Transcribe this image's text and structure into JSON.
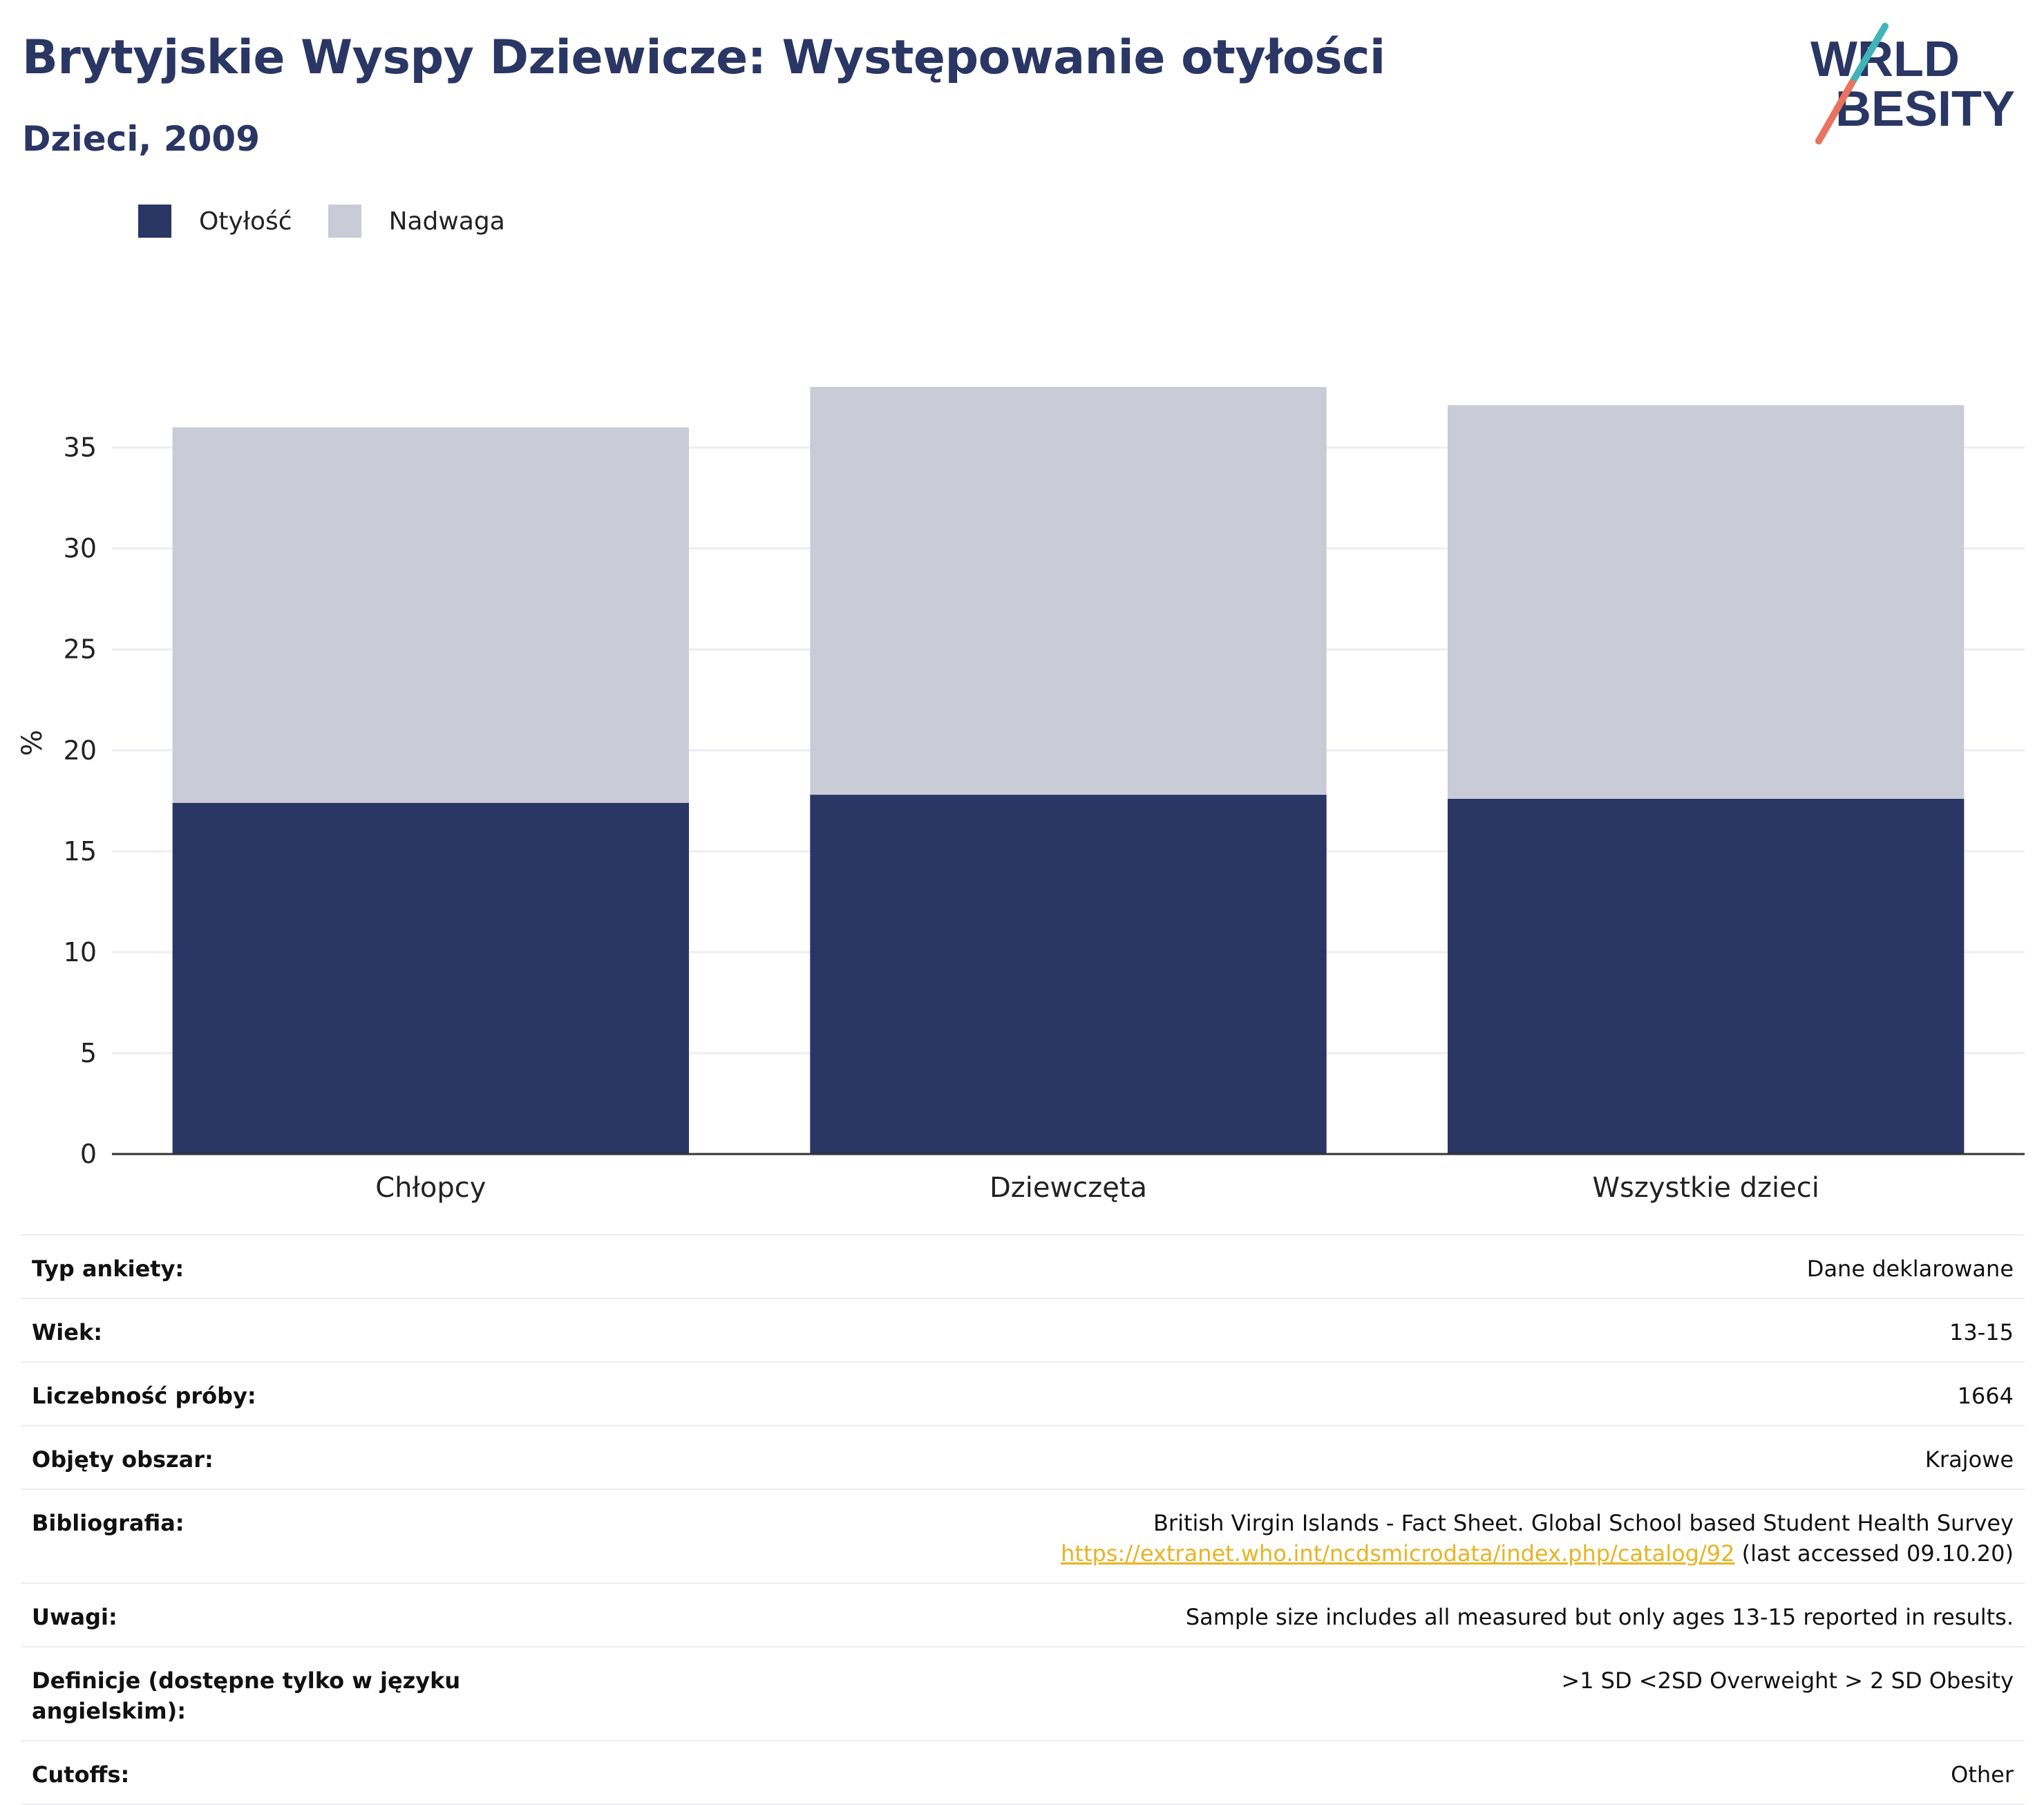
{
  "header": {
    "title": "Brytyjskie Wyspy Dziewicze: Występowanie otyłości",
    "subtitle": "Dzieci, 2009"
  },
  "logo": {
    "line1": "WORLD",
    "line2": "OBESITY"
  },
  "colors": {
    "obesity": "#2a3663",
    "overweight": "#c9ccd7",
    "text": "#2a3663",
    "link": "#e8b323",
    "accent_teal": "#3fb5b8",
    "accent_coral": "#e8735f"
  },
  "chart_data": {
    "type": "bar",
    "stacked": true,
    "categories": [
      "Chłopcy",
      "Dziewczęta",
      "Wszystkie dzieci"
    ],
    "series": [
      {
        "name": "Otyłość",
        "values": [
          17.4,
          17.8,
          17.6
        ]
      },
      {
        "name": "Nadwaga",
        "values": [
          18.6,
          20.2,
          19.5
        ]
      }
    ],
    "ylabel": "%",
    "xlabel": "",
    "ylim": [
      0,
      38
    ],
    "yticks": [
      0,
      5,
      10,
      15,
      20,
      25,
      30,
      35
    ],
    "grid": true,
    "legend_position": "top-left"
  },
  "meta": [
    {
      "label": "Typ ankiety:",
      "value": "Dane deklarowane"
    },
    {
      "label": "Wiek:",
      "value": "13-15"
    },
    {
      "label": "Liczebność próby:",
      "value": "1664"
    },
    {
      "label": "Objęty obszar:",
      "value": "Krajowe"
    },
    {
      "label": "Bibliografia:",
      "value": "British Virgin Islands - Fact Sheet. Global School based Student Health Survey",
      "link": "https://extranet.who.int/ncdsmicrodata/index.php/catalog/92",
      "suffix": " (last accessed 09.10.20)"
    },
    {
      "label": "Uwagi:",
      "value": "Sample size includes all measured but only ages 13-15 reported in results."
    },
    {
      "label": "Definicje (dostępne tylko w języku angielskim):",
      "value": ">1 SD <2SD Overweight > 2 SD Obesity"
    },
    {
      "label": "Cutoffs:",
      "value": "Other"
    }
  ]
}
